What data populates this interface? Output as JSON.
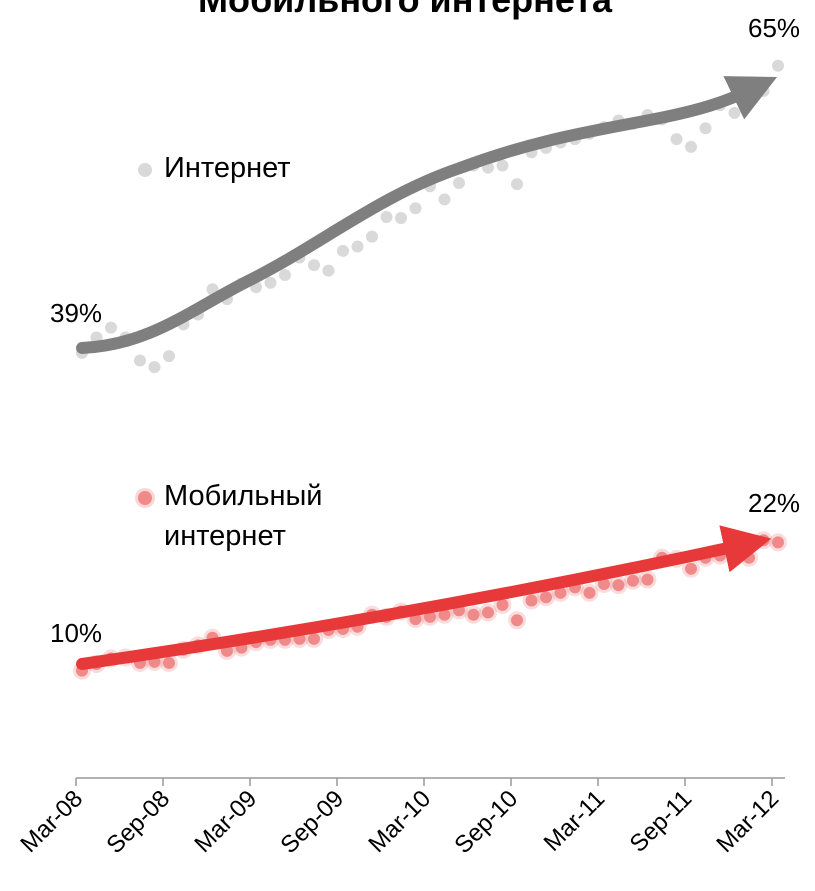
{
  "chart_data": {
    "type": "scatter",
    "title": "Мобильного интернета",
    "categories": [
      "Mar-08",
      null,
      null,
      null,
      null,
      null,
      "Sep-08",
      null,
      null,
      null,
      null,
      null,
      "Mar-09",
      null,
      null,
      null,
      null,
      null,
      "Sep-09",
      null,
      null,
      null,
      null,
      null,
      "Mar-10",
      null,
      null,
      null,
      null,
      null,
      "Sep-10",
      null,
      null,
      null,
      null,
      null,
      "Mar-11",
      null,
      null,
      null,
      null,
      null,
      "Sep-11",
      null,
      null,
      null,
      null,
      null,
      "Mar-12"
    ],
    "series": [
      {
        "name": "Интернет",
        "color": "#d9d9d9",
        "trend_color": "#7f7f7f",
        "values": [
          38.8,
          40.2,
          41.1,
          40.2,
          38.1,
          37.5,
          38.5,
          41.4,
          42.3,
          44.6,
          43.7,
          45.1,
          44.8,
          45.2,
          45.9,
          47.5,
          46.8,
          46.3,
          48.1,
          48.5,
          49.4,
          51.2,
          51.1,
          52.0,
          54.0,
          52.8,
          54.3,
          55.9,
          55.7,
          55.9,
          54.2,
          57.1,
          57.5,
          58.0,
          58.3,
          58.8,
          59.4,
          60.0,
          59.7,
          60.5,
          60.1,
          58.3,
          57.6,
          59.3,
          61.4,
          60.7,
          61.6,
          62.7,
          65.0
        ]
      },
      {
        "name": "Мобильный интернет",
        "color": "#f08a8a",
        "trend_color": "#e8393a",
        "values": [
          9.8,
          10.4,
          10.9,
          11.0,
          10.5,
          10.6,
          10.5,
          11.7,
          12.1,
          12.8,
          11.6,
          11.9,
          12.4,
          12.6,
          12.6,
          12.7,
          12.7,
          13.5,
          13.6,
          13.8,
          14.9,
          14.7,
          15.2,
          14.5,
          14.7,
          14.9,
          15.3,
          14.9,
          15.1,
          15.8,
          14.4,
          16.2,
          16.5,
          16.9,
          17.4,
          16.9,
          17.7,
          17.6,
          18.0,
          18.1,
          20.1,
          20.0,
          19.1,
          20.1,
          20.3,
          20.3,
          20.1,
          21.7,
          21.5
        ]
      }
    ],
    "annotations": [
      "39%",
      "65%",
      "10%",
      "22%"
    ],
    "ylim": [
      0,
      71
    ]
  }
}
